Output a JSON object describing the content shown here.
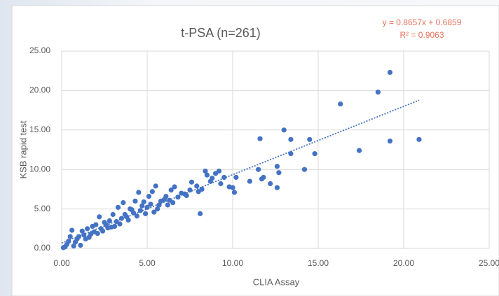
{
  "chart_data": {
    "type": "scatter",
    "title": "t-PSA  (n=261)",
    "x_label": "CLIA  Assay",
    "y_label": "KSB rapid test",
    "annotations": [
      "y = 0.8657x  + 0.6859",
      "R² = 0.9063"
    ],
    "trendline": {
      "slope": 0.8657,
      "intercept": 0.6859,
      "x_start": 0,
      "x_end": 20.9,
      "color": "#4472c4"
    },
    "color": "#4472c4",
    "grid": true,
    "xlim": [
      0,
      25
    ],
    "ylim": [
      0,
      25
    ],
    "xticks": [
      {
        "value": 0,
        "label": "0.00"
      },
      {
        "value": 5,
        "label": "5.00"
      },
      {
        "value": 10,
        "label": "10.00"
      },
      {
        "value": 15,
        "label": "15.00"
      },
      {
        "value": 20,
        "label": "20.00"
      },
      {
        "value": 25,
        "label": "25.00"
      }
    ],
    "yticks": [
      {
        "value": 0,
        "label": "0.00"
      },
      {
        "value": 5,
        "label": "5.00"
      },
      {
        "value": 10,
        "label": "10.00"
      },
      {
        "value": 15,
        "label": "15.00"
      },
      {
        "value": 20,
        "label": "20.00"
      },
      {
        "value": 25,
        "label": "25.00"
      }
    ],
    "series": [
      {
        "name": "t-PSA",
        "x": [
          16.3,
          18.5,
          19.2,
          17.4,
          19.2,
          20.9,
          13.0,
          13.4,
          14.5,
          11.6,
          14.8,
          13.4,
          14.2,
          12.6,
          12.7,
          12.6,
          12.2,
          11.8,
          11.5,
          11.7,
          11.0,
          10.0,
          10.1,
          9.8,
          10.2,
          9.5,
          9.2,
          9.0,
          8.4,
          8.5,
          8.7,
          8.1,
          8.2,
          7.9,
          7.6,
          7.0,
          7.3,
          6.6,
          6.4,
          6.0,
          6.2,
          5.5,
          5.3,
          5.1,
          4.5,
          4.8,
          4.3,
          4.0,
          3.6,
          3.8,
          3.3,
          3.5,
          3.0,
          2.8,
          2.5,
          2.2,
          2.0,
          1.8,
          1.5,
          1.2,
          1.0,
          0.6,
          0.5,
          0.3,
          0.1,
          0.2,
          0.8,
          1.1,
          1.4,
          1.7,
          2.4,
          2.7,
          3.1,
          4.2,
          4.6,
          5.0,
          5.6,
          5.8,
          6.8,
          7.2,
          6.3,
          4.9,
          5.4,
          3.9,
          2.9,
          2.1,
          1.3,
          0.9,
          0.4,
          1.6,
          2.3,
          3.4,
          4.4,
          5.2,
          6.5,
          7.5,
          8.0,
          8.8,
          9.3,
          0.7,
          1.9,
          2.6,
          3.2,
          3.7,
          4.1,
          4.7,
          5.7,
          6.1
        ],
        "values": [
          18.3,
          19.8,
          22.3,
          12.4,
          13.6,
          13.8,
          15.0,
          13.8,
          13.8,
          13.9,
          12.0,
          12.0,
          10.0,
          10.4,
          9.6,
          7.7,
          8.2,
          9.0,
          10.0,
          8.8,
          8.5,
          7.7,
          7.1,
          7.8,
          9.0,
          9.0,
          9.8,
          9.5,
          9.8,
          9.3,
          8.5,
          4.4,
          7.5,
          7.9,
          8.4,
          7.0,
          6.7,
          7.8,
          7.4,
          6.2,
          5.5,
          7.9,
          7.2,
          6.6,
          7.1,
          5.9,
          6.0,
          5.0,
          5.8,
          4.0,
          5.2,
          3.8,
          4.3,
          3.5,
          3.3,
          4.0,
          3.0,
          2.8,
          2.5,
          2.2,
          1.5,
          2.3,
          1.5,
          0.5,
          0.1,
          0.2,
          0.8,
          0.4,
          1.2,
          1.8,
          2.2,
          2.6,
          2.8,
          4.5,
          4.8,
          5.2,
          5.0,
          6.0,
          6.5,
          6.9,
          6.1,
          4.4,
          4.6,
          3.6,
          2.7,
          1.9,
          1.7,
          1.2,
          0.9,
          1.4,
          2.5,
          3.1,
          4.1,
          5.6,
          5.8,
          7.4,
          7.2,
          8.9,
          8.2,
          0.3,
          2.1,
          3.0,
          3.4,
          4.3,
          4.9,
          5.4,
          5.5,
          6.6
        ]
      }
    ]
  }
}
